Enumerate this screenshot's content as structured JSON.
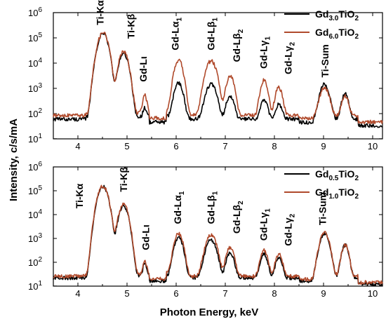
{
  "chart_data": [
    {
      "type": "line",
      "panel": "top",
      "xlim": [
        3.5,
        10.2
      ],
      "ylim": [
        10,
        1000000
      ],
      "yscale": "log",
      "grid": false,
      "legend_placement": "top-right",
      "xticks": [
        "4",
        "5",
        "6",
        "7",
        "8",
        "9",
        "10"
      ],
      "yticks": [
        {
          "base": "10",
          "exp": "1"
        },
        {
          "base": "10",
          "exp": "2"
        },
        {
          "base": "10",
          "exp": "3"
        },
        {
          "base": "10",
          "exp": "4"
        },
        {
          "base": "10",
          "exp": "5"
        },
        {
          "base": "10",
          "exp": "6"
        }
      ],
      "peak_labels": [
        {
          "x": 4.52,
          "y": 320000,
          "main": "Ti-K",
          "greek": "α",
          "sub": ""
        },
        {
          "x": 5.15,
          "y": 92000,
          "main": "Ti-K",
          "greek": "β",
          "sub": ""
        },
        {
          "x": 5.4,
          "y": 1800,
          "main": "Gd-L",
          "greek": "ι",
          "sub": ""
        },
        {
          "x": 6.05,
          "y": 32000,
          "main": "Gd-L",
          "greek": "α",
          "sub": "1"
        },
        {
          "x": 6.78,
          "y": 32000,
          "main": "Gd-L",
          "greek": "β",
          "sub": "1"
        },
        {
          "x": 7.3,
          "y": 11000,
          "main": "Gd-L",
          "greek": "β",
          "sub": "2"
        },
        {
          "x": 7.85,
          "y": 6000,
          "main": "Gd-L",
          "greek": "γ",
          "sub": "1"
        },
        {
          "x": 8.35,
          "y": 3600,
          "main": "Gd-L",
          "greek": "γ",
          "sub": "2"
        },
        {
          "x": 9.1,
          "y": 2700,
          "main": "Ti-Sum",
          "greek": "",
          "sub": ""
        }
      ],
      "series": [
        {
          "name": {
            "pre": "Gd",
            "sub": "3.0",
            "post": "TiO",
            "sub2": "2"
          },
          "color": "#000000",
          "baseline": 60,
          "peaks": [
            [
              4.51,
              150000,
              0.075
            ],
            [
              4.93,
              24000,
              0.07
            ],
            [
              5.36,
              100,
              0.03
            ],
            [
              6.05,
              1600,
              0.065
            ],
            [
              6.71,
              1400,
              0.08
            ],
            [
              7.1,
              450,
              0.06
            ],
            [
              7.79,
              280,
              0.055
            ],
            [
              8.09,
              170,
              0.055
            ],
            [
              9.02,
              1400,
              0.07
            ],
            [
              9.44,
              550,
              0.055
            ]
          ]
        },
        {
          "name": {
            "pre": "Gd",
            "sub": "6.0",
            "post": "TiO",
            "sub2": "2"
          },
          "color": "#b04a2c",
          "baseline": 85,
          "peaks": [
            [
              4.51,
              160000,
              0.075
            ],
            [
              4.93,
              28000,
              0.07
            ],
            [
              5.36,
              420,
              0.035
            ],
            [
              6.05,
              13000,
              0.065
            ],
            [
              6.71,
              12000,
              0.08
            ],
            [
              7.1,
              3000,
              0.06
            ],
            [
              7.79,
              2000,
              0.055
            ],
            [
              8.09,
              1000,
              0.055
            ],
            [
              9.02,
              1000,
              0.07
            ],
            [
              9.44,
              420,
              0.055
            ]
          ]
        }
      ]
    },
    {
      "type": "line",
      "panel": "bottom",
      "xlim": [
        3.5,
        10.2
      ],
      "ylim": [
        10,
        1000000
      ],
      "yscale": "log",
      "grid": false,
      "legend_placement": "top-right",
      "xticks": [
        "4",
        "5",
        "6",
        "7",
        "8",
        "9",
        "10"
      ],
      "yticks": [
        {
          "base": "10",
          "exp": "1"
        },
        {
          "base": "10",
          "exp": "2"
        },
        {
          "base": "10",
          "exp": "3"
        },
        {
          "base": "10",
          "exp": "4"
        },
        {
          "base": "10",
          "exp": "5"
        },
        {
          "base": "10",
          "exp": "6"
        }
      ],
      "peak_labels": [
        {
          "x": 4.1,
          "y": 18000,
          "main": "Ti-K",
          "greek": "α",
          "sub": ""
        },
        {
          "x": 5.0,
          "y": 90000,
          "main": "Ti-K",
          "greek": "β",
          "sub": ""
        },
        {
          "x": 5.45,
          "y": 320,
          "main": "Gd-L",
          "greek": "ι",
          "sub": ""
        },
        {
          "x": 6.1,
          "y": 4000,
          "main": "Gd-L",
          "greek": "α",
          "sub": "1"
        },
        {
          "x": 6.78,
          "y": 4000,
          "main": "Gd-L",
          "greek": "β",
          "sub": "1"
        },
        {
          "x": 7.3,
          "y": 1600,
          "main": "Gd-L",
          "greek": "β",
          "sub": "2"
        },
        {
          "x": 7.85,
          "y": 800,
          "main": "Gd-L",
          "greek": "γ",
          "sub": "1"
        },
        {
          "x": 8.35,
          "y": 480,
          "main": "Gd-L",
          "greek": "γ",
          "sub": "2"
        },
        {
          "x": 9.05,
          "y": 3600,
          "main": "Ti-Sum",
          "greek": "",
          "sub": ""
        }
      ],
      "series": [
        {
          "name": {
            "pre": "Gd",
            "sub": "0.5",
            "post": "TiO",
            "sub2": "2"
          },
          "color": "#000000",
          "baseline": 22,
          "peaks": [
            [
              4.51,
              150000,
              0.075
            ],
            [
              4.93,
              23000,
              0.07
            ],
            [
              5.36,
              60,
              0.03
            ],
            [
              6.05,
              1100,
              0.065
            ],
            [
              6.71,
              850,
              0.08
            ],
            [
              7.1,
              230,
              0.06
            ],
            [
              7.79,
              200,
              0.055
            ],
            [
              8.09,
              130,
              0.055
            ],
            [
              9.02,
              1600,
              0.07
            ],
            [
              9.44,
              500,
              0.055
            ]
          ]
        },
        {
          "name": {
            "pre": "Gd",
            "sub": "1.0",
            "post": "TiO",
            "sub2": "2"
          },
          "color": "#b04a2c",
          "baseline": 26,
          "peaks": [
            [
              4.51,
              160000,
              0.075
            ],
            [
              4.93,
              27000,
              0.07
            ],
            [
              5.36,
              90,
              0.03
            ],
            [
              6.05,
              1600,
              0.065
            ],
            [
              6.71,
              1400,
              0.08
            ],
            [
              7.1,
              380,
              0.06
            ],
            [
              7.79,
              300,
              0.055
            ],
            [
              8.09,
              190,
              0.055
            ],
            [
              9.02,
              1700,
              0.07
            ],
            [
              9.44,
              520,
              0.055
            ]
          ]
        }
      ]
    }
  ],
  "axes": {
    "ylabel": "Intensity, c/s/mA",
    "xlabel": "Photon Energy, keV"
  }
}
